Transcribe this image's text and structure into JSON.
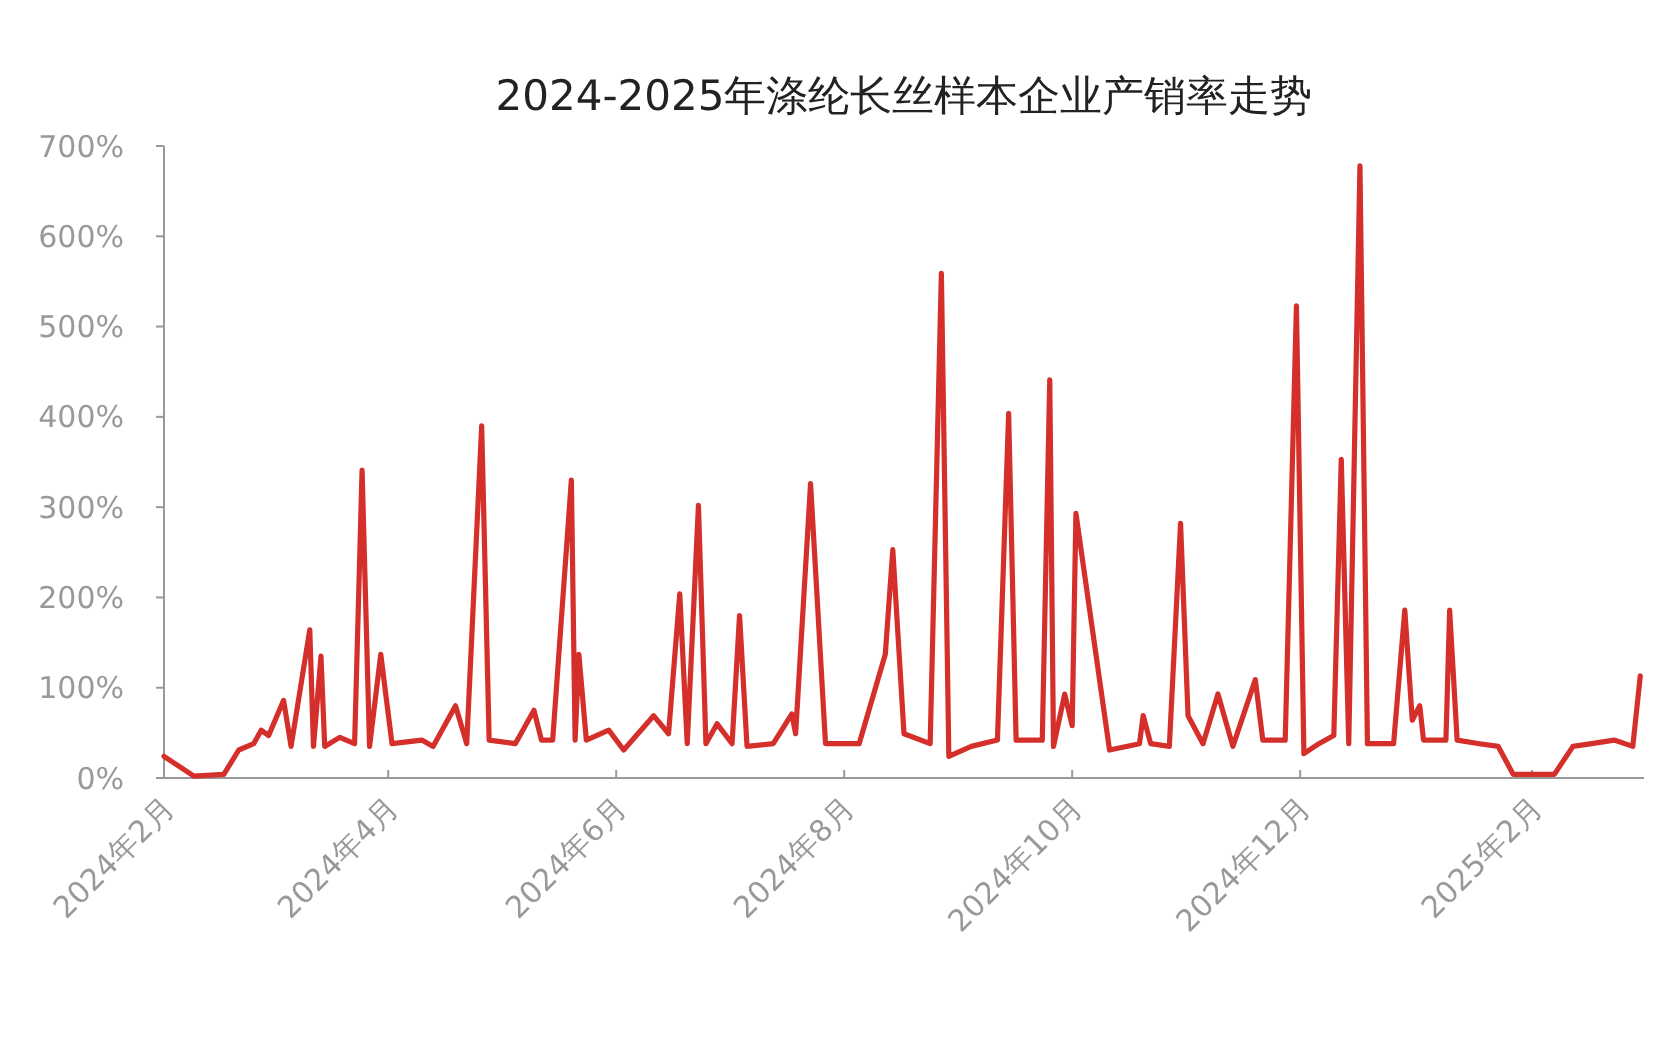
{
  "chart_data": {
    "type": "line",
    "title": "2024-2025年涤纶长丝样本企业产销率走势",
    "xlim": [
      "2024-02-01",
      "2025-03-03"
    ],
    "xticks": [
      {
        "value": "2024-02-01",
        "label": "2024年2月"
      },
      {
        "value": "2024-04-01",
        "label": "2024年4月"
      },
      {
        "value": "2024-06-01",
        "label": "2024年6月"
      },
      {
        "value": "2024-08-01",
        "label": "2024年8月"
      },
      {
        "value": "2024-10-01",
        "label": "2024年10月"
      },
      {
        "value": "2024-12-01",
        "label": "2024年12月"
      },
      {
        "value": "2025-02-01",
        "label": "2025年2月"
      }
    ],
    "ylim": [
      0,
      700
    ],
    "yticks": [
      {
        "value": 0,
        "label": "0%"
      },
      {
        "value": 100,
        "label": "100%"
      },
      {
        "value": 200,
        "label": "200%"
      },
      {
        "value": 300,
        "label": "300%"
      },
      {
        "value": 400,
        "label": "400%"
      },
      {
        "value": 500,
        "label": "500%"
      },
      {
        "value": 600,
        "label": "600%"
      },
      {
        "value": 700,
        "label": "700%"
      }
    ],
    "marker": "none",
    "line_style": "solid",
    "x": [
      "2024-02-01",
      "2024-02-09",
      "2024-02-17",
      "2024-02-21",
      "2024-02-25",
      "2024-02-27",
      "2024-02-29",
      "2024-03-04",
      "2024-03-06",
      "2024-03-11",
      "2024-03-12",
      "2024-03-14",
      "2024-03-15",
      "2024-03-19",
      "2024-03-23",
      "2024-03-25",
      "2024-03-27",
      "2024-03-30",
      "2024-04-02",
      "2024-04-10",
      "2024-04-13",
      "2024-04-19",
      "2024-04-22",
      "2024-04-26",
      "2024-04-28",
      "2024-05-05",
      "2024-05-10",
      "2024-05-12",
      "2024-05-15",
      "2024-05-20",
      "2024-05-21",
      "2024-05-22",
      "2024-05-24",
      "2024-05-30",
      "2024-06-03",
      "2024-06-11",
      "2024-06-15",
      "2024-06-18",
      "2024-06-20",
      "2024-06-23",
      "2024-06-25",
      "2024-06-28",
      "2024-07-02",
      "2024-07-04",
      "2024-07-06",
      "2024-07-13",
      "2024-07-18",
      "2024-07-19",
      "2024-07-23",
      "2024-07-27",
      "2024-08-05",
      "2024-08-12",
      "2024-08-14",
      "2024-08-17",
      "2024-08-24",
      "2024-08-27",
      "2024-08-29",
      "2024-09-04",
      "2024-09-11",
      "2024-09-14",
      "2024-09-16",
      "2024-09-23",
      "2024-09-25",
      "2024-09-26",
      "2024-09-29",
      "2024-10-01",
      "2024-10-02",
      "2024-10-11",
      "2024-10-19",
      "2024-10-20",
      "2024-10-22",
      "2024-10-27",
      "2024-10-30",
      "2024-11-01",
      "2024-11-05",
      "2024-11-09",
      "2024-11-13",
      "2024-11-19",
      "2024-11-21",
      "2024-11-27",
      "2024-11-30",
      "2024-12-02",
      "2024-12-06",
      "2024-12-10",
      "2024-12-12",
      "2024-12-14",
      "2024-12-17",
      "2024-12-19",
      "2024-12-26",
      "2024-12-29",
      "2024-12-31",
      "2025-01-02",
      "2025-01-03",
      "2025-01-09",
      "2025-01-10",
      "2025-01-12",
      "2025-01-18",
      "2025-01-23",
      "2025-01-27",
      "2025-02-07",
      "2025-02-12",
      "2025-02-17",
      "2025-02-23",
      "2025-02-28",
      "2025-03-02"
    ],
    "series": [
      {
        "color": "#d42f2a",
        "values": [
          24,
          2,
          4,
          31,
          38,
          53,
          47,
          86,
          35,
          164,
          35,
          135,
          35,
          45,
          38,
          341,
          35,
          137,
          38,
          42,
          35,
          80,
          38,
          390,
          42,
          38,
          75,
          42,
          42,
          330,
          42,
          137,
          42,
          53,
          31,
          69,
          49,
          204,
          38,
          302,
          38,
          60,
          38,
          180,
          35,
          38,
          71,
          49,
          326,
          38,
          38,
          137,
          253,
          49,
          38,
          559,
          24,
          35,
          42,
          404,
          42,
          42,
          441,
          35,
          93,
          58,
          293,
          31,
          38,
          69,
          38,
          35,
          282,
          69,
          38,
          93,
          35,
          109,
          42,
          42,
          523,
          27,
          38,
          47,
          353,
          38,
          678,
          38,
          38,
          186,
          64,
          80,
          42,
          42,
          186,
          42,
          38,
          35,
          4,
          4,
          35,
          38,
          42,
          35,
          113
        ]
      }
    ]
  }
}
